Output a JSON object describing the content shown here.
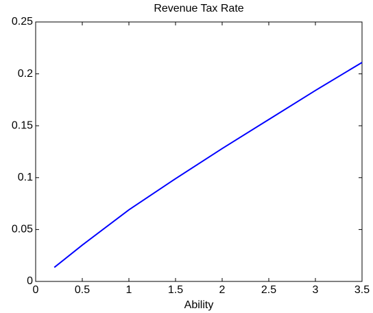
{
  "chart_data": {
    "type": "line",
    "title": "Revenue Tax Rate",
    "x_label": "Ability",
    "x": [
      0.2,
      0.5,
      1,
      1.5,
      2,
      2.5,
      3,
      3.5
    ],
    "series": [
      {
        "color": "#0000ff",
        "values": [
          0.0135,
          0.035,
          0.069,
          0.099,
          0.128,
          0.156,
          0.184,
          0.211
        ]
      }
    ],
    "xlim": [
      0,
      3.5
    ],
    "xticks": [
      0,
      0.5,
      1,
      1.5,
      2,
      2.5,
      3,
      3.5
    ],
    "ylim": [
      0,
      0.25
    ],
    "yticks": [
      0,
      0.05,
      0.1,
      0.15,
      0.2,
      0.25
    ],
    "grid": false
  }
}
